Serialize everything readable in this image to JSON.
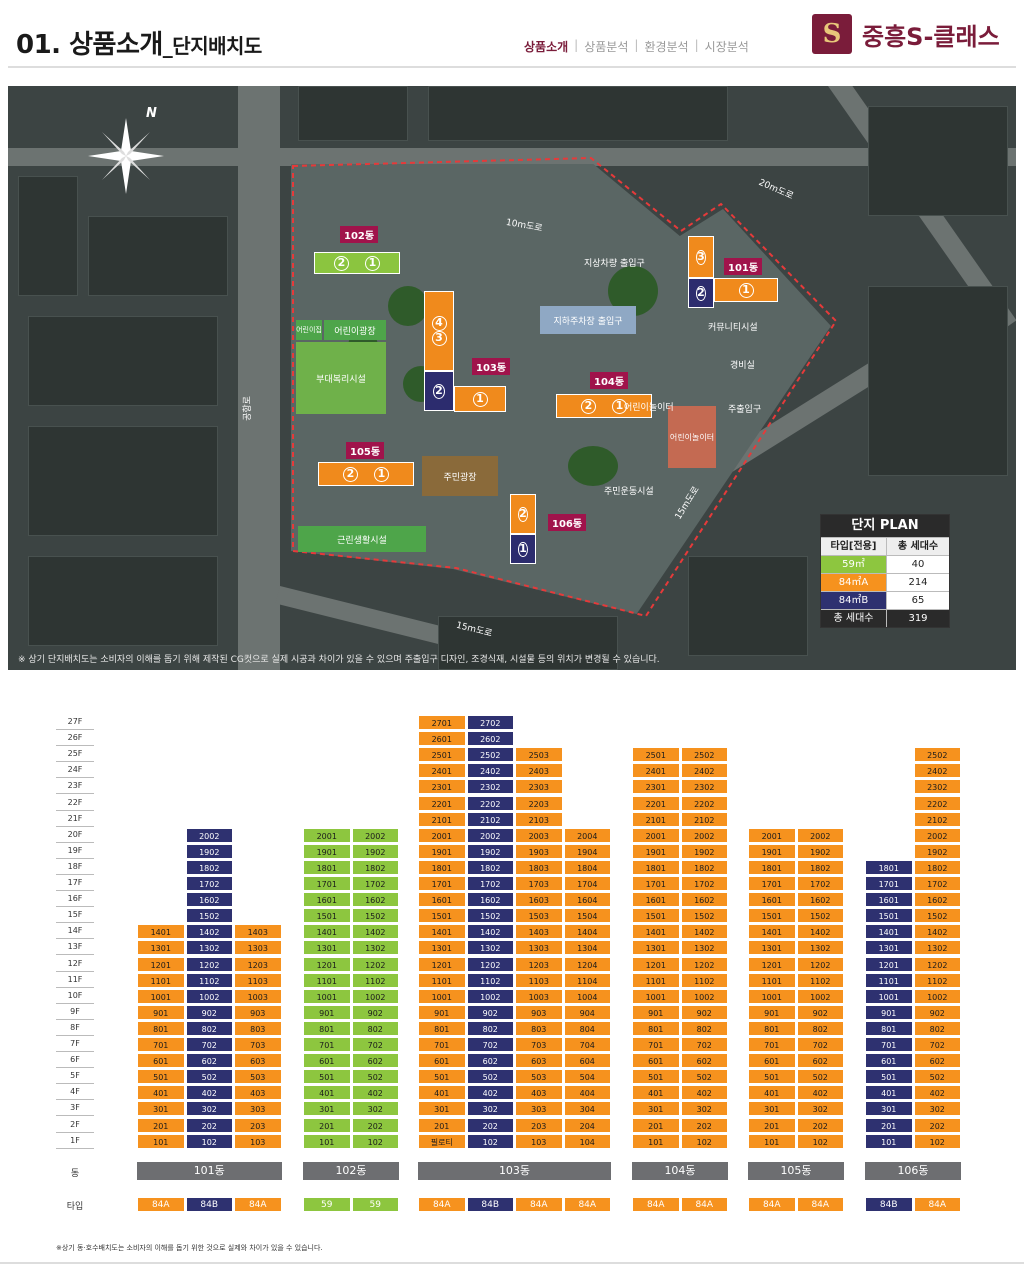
{
  "header": {
    "title": "01. 상품소개",
    "subtitle": "_단지배치도",
    "nav": [
      "상품소개",
      "상품분석",
      "환경분석",
      "시장분석"
    ],
    "brand_logo": "S",
    "brand_name": "중흥S-클래스",
    "accent": "#7a1c3a"
  },
  "map": {
    "compass_label": "N",
    "dongs": [
      "101동",
      "102동",
      "103동",
      "104동",
      "105동",
      "106동"
    ],
    "labels": {
      "road_10m": "10m도로",
      "road_20m": "20m도로",
      "road_15m_east": "15m도로",
      "road_15m_south": "15m도로",
      "road_west": "공항로",
      "ground_entrance": "지상차량 출입구",
      "underground_entrance": "지하주차장 출입구",
      "pedestrian_entrance": "주출입구",
      "guard": "경비실",
      "kids_cafe": "어린이집",
      "playground_east": "어린이놀이터",
      "community": "커뮤니티시설",
      "welfare": "부대복리시설",
      "plaza": "어린이광장",
      "main_plaza": "주민광장",
      "fitness": "주민운동시설",
      "playground": "어린이놀이터",
      "neighborhood": "근린생활시설"
    },
    "note": "※ 상기 단지배치도는 소비자의 이해를 돕기 위해 제작된 CG컷으로 실제 시공과 차이가 있을 수 있으며 주출입구 디자인, 조경식재, 시설물 등의 위치가 변경될 수 있습니다."
  },
  "plan_table": {
    "title": "단지 PLAN",
    "headers": [
      "타입[전용]",
      "총 세대수"
    ],
    "rows": [
      {
        "type": "59㎡",
        "count": "40",
        "color": "#8dc63f"
      },
      {
        "type": "84㎡A",
        "count": "214",
        "color": "#f6921e"
      },
      {
        "type": "84㎡B",
        "count": "65",
        "color": "#2e3170"
      }
    ],
    "total_label": "총 세대수",
    "total": "319"
  },
  "stacking": {
    "floors": [
      "27F",
      "26F",
      "25F",
      "24F",
      "23F",
      "22F",
      "21F",
      "20F",
      "19F",
      "18F",
      "17F",
      "16F",
      "15F",
      "14F",
      "13F",
      "12F",
      "11F",
      "10F",
      "9F",
      "8F",
      "7F",
      "6F",
      "5F",
      "4F",
      "3F",
      "2F",
      "1F"
    ],
    "dong_row_label": "동",
    "type_row_label": "타입",
    "buildings": [
      {
        "name": "101동",
        "lines": [
          {
            "col": "01",
            "type": "84A",
            "color": "o",
            "max": 14
          },
          {
            "col": "02",
            "type": "84B",
            "color": "b",
            "max": 20
          },
          {
            "col": "03",
            "type": "84A",
            "color": "o",
            "max": 14
          }
        ]
      },
      {
        "name": "102동",
        "lines": [
          {
            "col": "01",
            "type": "59",
            "color": "g",
            "max": 20
          },
          {
            "col": "02",
            "type": "59",
            "color": "g",
            "max": 20
          }
        ]
      },
      {
        "name": "103동",
        "lines": [
          {
            "col": "01",
            "type": "84A",
            "color": "o",
            "max": 27,
            "first": "필로티"
          },
          {
            "col": "02",
            "type": "84B",
            "color": "b",
            "max": 27
          },
          {
            "col": "03",
            "type": "84A",
            "color": "o",
            "max": 25
          },
          {
            "col": "04",
            "type": "84A",
            "color": "o",
            "max": 20
          }
        ]
      },
      {
        "name": "104동",
        "lines": [
          {
            "col": "01",
            "type": "84A",
            "color": "o",
            "max": 25
          },
          {
            "col": "02",
            "type": "84A",
            "color": "o",
            "max": 25
          }
        ]
      },
      {
        "name": "105동",
        "lines": [
          {
            "col": "01",
            "type": "84A",
            "color": "o",
            "max": 20
          },
          {
            "col": "02",
            "type": "84A",
            "color": "o",
            "max": 20
          }
        ]
      },
      {
        "name": "106동",
        "lines": [
          {
            "col": "01",
            "type": "84B",
            "color": "b",
            "max": 18
          },
          {
            "col": "02",
            "type": "84A",
            "color": "o",
            "max": 25
          }
        ]
      }
    ],
    "note": "※상기 동·호수배치도는 소비자의 이해를 돕기 위한 것으로 실제와 차이가 있을 수 있습니다."
  }
}
